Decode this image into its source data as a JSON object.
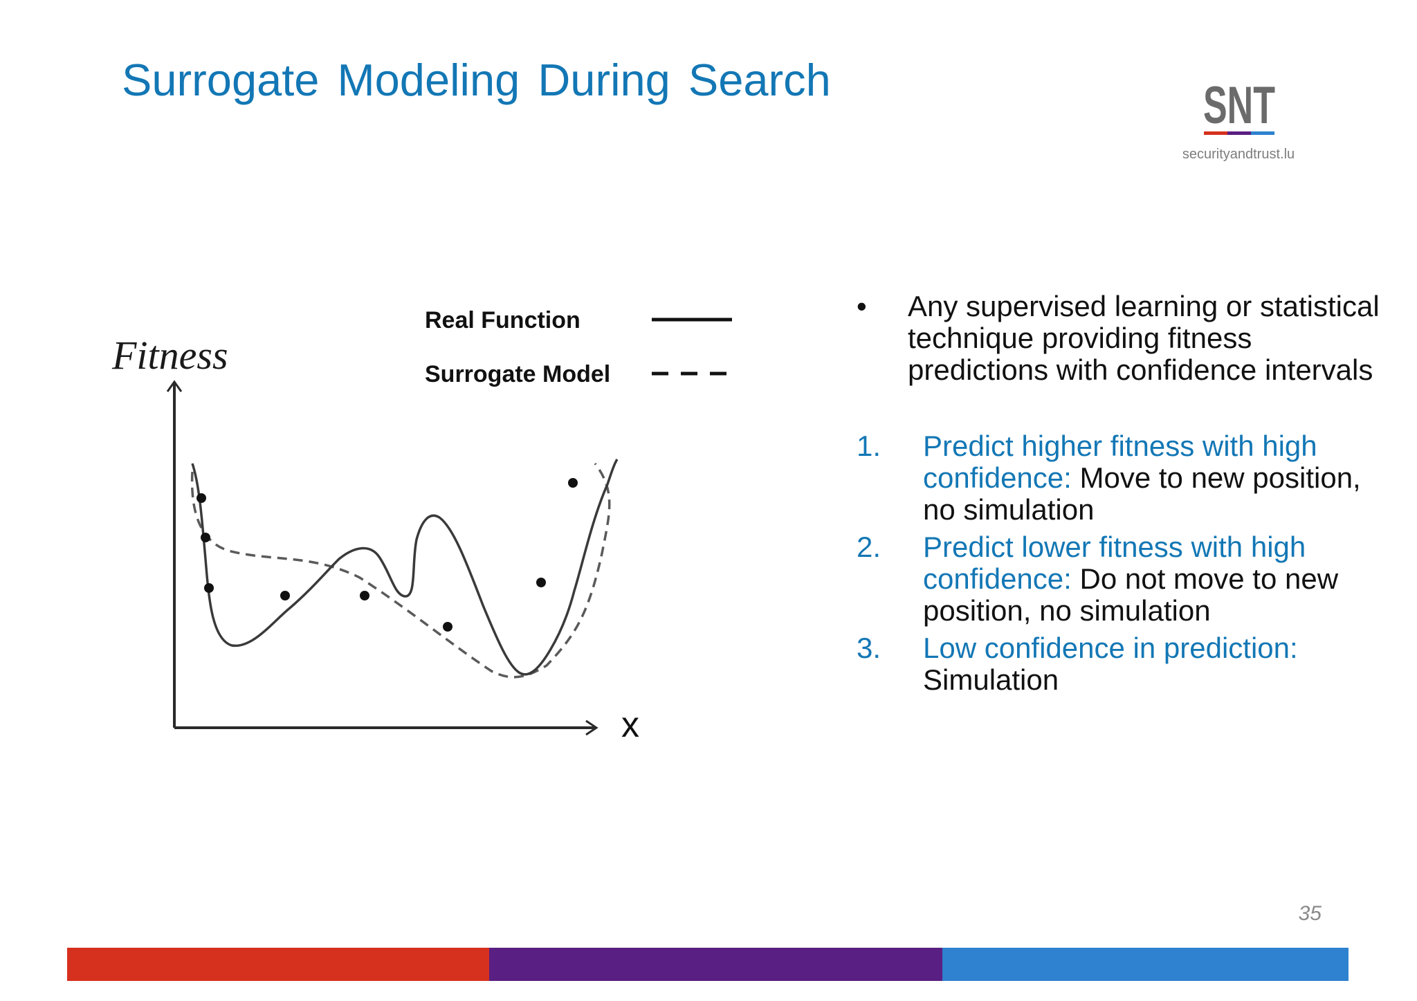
{
  "slide": {
    "title": "Surrogate Modeling During Search",
    "page_number": "35"
  },
  "logo": {
    "url_text": "securityandtrust.lu",
    "colors": {
      "red": "#d6311e",
      "purple": "#5a1f82",
      "blue": "#2f82cf"
    }
  },
  "figure": {
    "y_label": "Fitness",
    "x_label": "x",
    "legend": {
      "real_function": "Real Function",
      "surrogate_model": "Surrogate Model"
    }
  },
  "text": {
    "bullet_marker": "•",
    "bullet": "Any supervised learning or statistical technique providing fitness predictions with confidence intervals",
    "items": [
      {
        "number": "1.",
        "highlight": "Predict higher fitness with high confidence:",
        "rest": " Move to new position, no simulation"
      },
      {
        "number": "2.",
        "highlight": "Predict lower fitness with high confidence:",
        "rest": " Do not move to new position, no simulation"
      },
      {
        "number": "3.",
        "highlight": "Low confidence in prediction:",
        "rest": " Simulation"
      }
    ]
  },
  "colors": {
    "title": "#1377b5",
    "highlight": "#1377b5",
    "footer_red": "#d6311e",
    "footer_purple": "#5a1f82",
    "footer_blue": "#2f82cf"
  }
}
